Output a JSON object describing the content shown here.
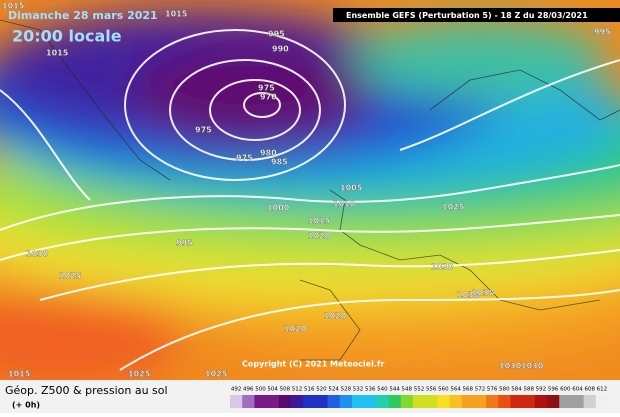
{
  "header": {
    "date": "Dimanche 28 mars 2021",
    "time": "20:00 locale",
    "model": "Ensemble GEFS  (Perturbation 5)  - 18 Z du 28/03/2021"
  },
  "map": {
    "isobar_labels": [
      1015,
      1015,
      995,
      990,
      975,
      970,
      975,
      975,
      980,
      985,
      1015,
      995,
      1005,
      1010,
      1000,
      1015,
      1020,
      1025,
      995,
      1030,
      1025,
      1030,
      1030,
      1030,
      1020,
      1020,
      1025,
      1025,
      1030,
      1030,
      1015
    ],
    "copyright": "Copyright (C) 2021 Meteociel.fr"
  },
  "legend": {
    "title": "Géop. Z500 & pression au sol",
    "lead": "(+ 0h)",
    "scale": [
      492,
      496,
      500,
      504,
      508,
      512,
      516,
      520,
      524,
      528,
      532,
      536,
      540,
      544,
      548,
      552,
      556,
      560,
      564,
      568,
      572,
      576,
      580,
      584,
      588,
      592,
      596,
      600,
      604,
      608,
      612
    ]
  }
}
